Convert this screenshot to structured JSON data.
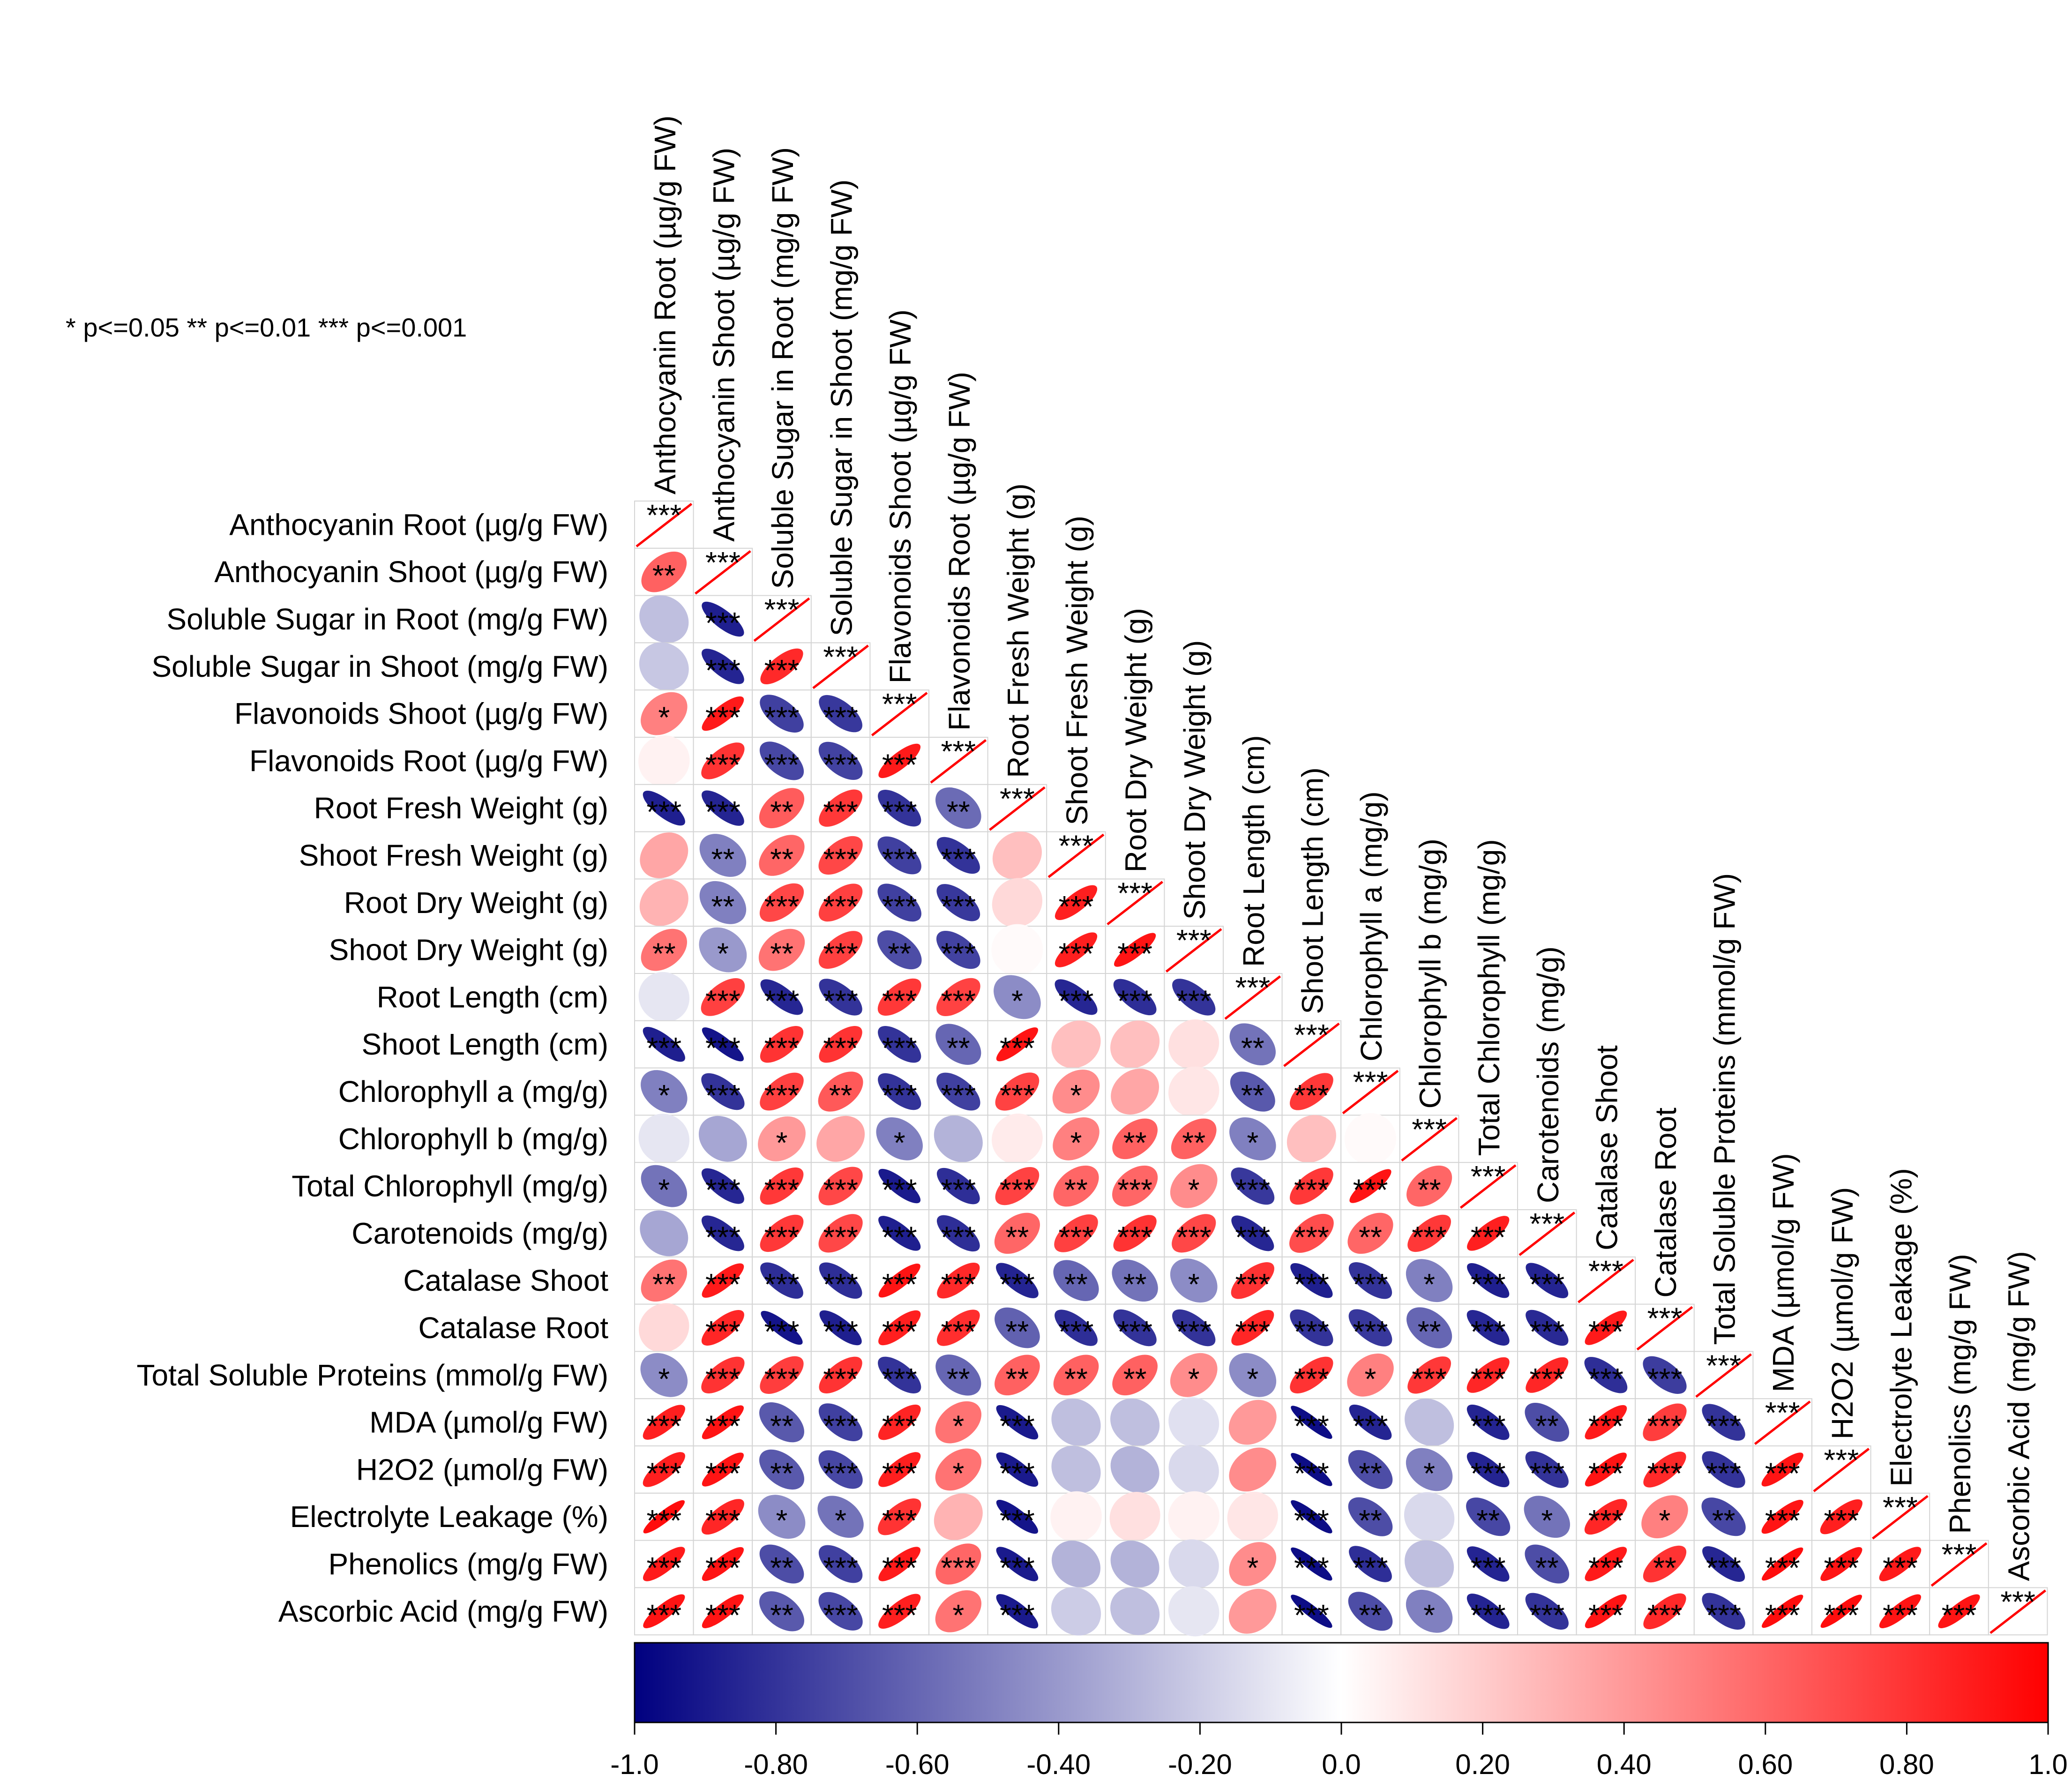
{
  "chart_data": {
    "type": "heatmap",
    "subtype": "correlation-ellipse-lower-triangle",
    "significance_legend": "* p<=0.05  ** p<=0.01  *** p<=0.001",
    "variables": [
      "Anthocyanin Root (µg/g FW)",
      "Anthocyanin Shoot (µg/g FW)",
      "Soluble Sugar in Root (mg/g FW)",
      "Soluble Sugar in Shoot (mg/g FW)",
      "Flavonoids Shoot (µg/g FW)",
      "Flavonoids Root (µg/g FW)",
      "Root Fresh Weight (g)",
      "Shoot Fresh Weight (g)",
      "Root Dry Weight (g)",
      "Shoot Dry Weight (g)",
      "Root Length (cm)",
      "Shoot Length (cm)",
      "Chlorophyll a (mg/g)",
      "Chlorophyll b (mg/g)",
      "Total Chlorophyll  (mg/g)",
      "Carotenoids (mg/g)",
      "Catalase Shoot",
      "Catalase Root",
      "Total Soluble Proteins (mmol/g FW)",
      "MDA (µmol/g FW)",
      "H2O2 (µmol/g FW)",
      "Electrolyte Leakage (%)",
      "Phenolics  (mg/g FW)",
      "Ascorbic Acid (mg/g FW)"
    ],
    "correlations": [
      [
        1.0
      ],
      [
        0.62,
        1.0
      ],
      [
        -0.25,
        -0.88,
        1.0
      ],
      [
        -0.22,
        -0.86,
        0.84,
        1.0
      ],
      [
        0.5,
        0.9,
        -0.75,
        -0.78,
        1.0
      ],
      [
        0.05,
        0.8,
        -0.72,
        -0.74,
        0.9,
        1.0
      ],
      [
        -0.88,
        -0.86,
        0.64,
        0.78,
        -0.8,
        -0.58,
        1.0
      ],
      [
        0.35,
        -0.5,
        0.6,
        0.72,
        -0.75,
        -0.8,
        0.25,
        1.0
      ],
      [
        0.3,
        -0.5,
        0.72,
        0.75,
        -0.75,
        -0.78,
        0.15,
        0.88,
        1.0
      ],
      [
        0.55,
        -0.4,
        0.55,
        0.75,
        -0.7,
        -0.74,
        0.02,
        0.88,
        0.92,
        1.0
      ],
      [
        -0.1,
        0.75,
        -0.85,
        -0.8,
        0.78,
        0.74,
        -0.45,
        -0.85,
        -0.82,
        -0.8,
        1.0
      ],
      [
        -0.88,
        -0.92,
        0.8,
        0.8,
        -0.8,
        -0.6,
        0.92,
        0.25,
        0.25,
        0.12,
        -0.55,
        1.0
      ],
      [
        -0.5,
        -0.8,
        0.75,
        0.65,
        -0.8,
        -0.75,
        0.74,
        0.45,
        0.35,
        0.1,
        -0.65,
        0.78,
        1.0
      ],
      [
        -0.1,
        -0.35,
        0.4,
        0.35,
        -0.5,
        -0.3,
        0.08,
        0.5,
        0.62,
        0.62,
        -0.5,
        0.25,
        0.02,
        1.0
      ],
      [
        -0.55,
        -0.85,
        0.78,
        0.72,
        -0.9,
        -0.82,
        0.74,
        0.6,
        0.6,
        0.45,
        -0.78,
        0.78,
        0.92,
        0.6,
        1.0
      ],
      [
        -0.35,
        -0.85,
        0.78,
        0.72,
        -0.88,
        -0.82,
        0.6,
        0.75,
        0.8,
        0.72,
        -0.85,
        0.7,
        0.6,
        0.78,
        0.88,
        1.0
      ],
      [
        0.55,
        0.9,
        -0.82,
        -0.82,
        0.92,
        0.84,
        -0.86,
        -0.6,
        -0.55,
        -0.45,
        0.8,
        -0.88,
        -0.8,
        -0.5,
        -0.88,
        -0.86,
        1.0
      ],
      [
        0.15,
        0.85,
        -0.92,
        -0.88,
        0.88,
        0.82,
        -0.62,
        -0.82,
        -0.8,
        -0.8,
        0.85,
        -0.8,
        -0.78,
        -0.6,
        -0.85,
        -0.84,
        0.9,
        1.0
      ],
      [
        -0.45,
        0.8,
        0.76,
        0.8,
        -0.8,
        -0.6,
        0.62,
        0.62,
        0.62,
        0.45,
        -0.45,
        0.8,
        0.5,
        0.78,
        0.85,
        0.85,
        -0.82,
        -0.76,
        1.0
      ],
      [
        0.88,
        0.92,
        -0.65,
        -0.75,
        0.86,
        0.55,
        -0.9,
        -0.25,
        -0.25,
        -0.12,
        0.4,
        -0.95,
        -0.86,
        -0.25,
        -0.86,
        -0.7,
        0.9,
        0.76,
        -0.8,
        1.0
      ],
      [
        0.88,
        0.92,
        -0.65,
        -0.72,
        0.88,
        0.55,
        -0.9,
        -0.25,
        -0.3,
        -0.15,
        0.45,
        -0.95,
        -0.7,
        -0.5,
        -0.86,
        -0.8,
        0.92,
        0.84,
        -0.8,
        0.92,
        1.0
      ],
      [
        0.95,
        0.85,
        -0.45,
        -0.55,
        0.8,
        0.3,
        -0.92,
        0.05,
        0.12,
        0.05,
        0.1,
        -0.95,
        -0.7,
        -0.15,
        -0.72,
        -0.55,
        0.85,
        0.5,
        -0.72,
        0.92,
        0.88,
        1.0
      ],
      [
        0.9,
        0.92,
        -0.7,
        -0.75,
        0.9,
        0.6,
        -0.9,
        -0.3,
        -0.3,
        -0.15,
        0.45,
        -0.95,
        -0.82,
        -0.25,
        -0.86,
        -0.7,
        0.9,
        0.8,
        -0.85,
        0.95,
        0.92,
        0.9,
        1.0
      ],
      [
        0.92,
        0.92,
        -0.65,
        -0.72,
        0.88,
        0.55,
        -0.9,
        -0.2,
        -0.25,
        -0.1,
        0.4,
        -0.95,
        -0.7,
        -0.5,
        -0.86,
        -0.8,
        0.92,
        0.84,
        -0.8,
        0.95,
        0.95,
        0.92,
        0.92,
        1.0
      ]
    ],
    "significance": [
      [
        "***"
      ],
      [
        "**",
        "***"
      ],
      [
        "",
        "***",
        "***"
      ],
      [
        "",
        "***",
        "***",
        "***"
      ],
      [
        "*",
        "***",
        "***",
        "***",
        "***"
      ],
      [
        "",
        "***",
        "***",
        "***",
        "***",
        "***"
      ],
      [
        "***",
        "***",
        "**",
        "***",
        "***",
        "**",
        "***"
      ],
      [
        "",
        "**",
        "**",
        "***",
        "***",
        "***",
        "",
        "***"
      ],
      [
        "",
        "**",
        "***",
        "***",
        "***",
        "***",
        "",
        "***",
        "***"
      ],
      [
        "**",
        "*",
        "**",
        "***",
        "**",
        "***",
        "",
        "***",
        "***",
        "***"
      ],
      [
        "",
        "***",
        "***",
        "***",
        "***",
        "***",
        "*",
        "***",
        "***",
        "***",
        "***"
      ],
      [
        "***",
        "***",
        "***",
        "***",
        "***",
        "**",
        "***",
        "",
        "",
        "",
        "**",
        "***"
      ],
      [
        "*",
        "***",
        "***",
        "**",
        "***",
        "***",
        "***",
        "*",
        "",
        "",
        "**",
        "***",
        "***"
      ],
      [
        "",
        "",
        "*",
        "",
        "*",
        "",
        "",
        "*",
        "**",
        "**",
        "*",
        "",
        "",
        "***"
      ],
      [
        "*",
        "***",
        "***",
        "***",
        "***",
        "***",
        "***",
        "**",
        "***",
        "*",
        "***",
        "***",
        "***",
        "**",
        "***"
      ],
      [
        "",
        "***",
        "***",
        "***",
        "***",
        "***",
        "**",
        "***",
        "***",
        "***",
        "***",
        "***",
        "**",
        "***",
        "***",
        "***"
      ],
      [
        "**",
        "***",
        "***",
        "***",
        "***",
        "***",
        "***",
        "**",
        "**",
        "*",
        "***",
        "***",
        "***",
        "*",
        "***",
        "***",
        "***"
      ],
      [
        "",
        "***",
        "***",
        "***",
        "***",
        "***",
        "**",
        "***",
        "***",
        "***",
        "***",
        "***",
        "***",
        "**",
        "***",
        "***",
        "***",
        "***"
      ],
      [
        "*",
        "***",
        "***",
        "***",
        "***",
        "**",
        "**",
        "**",
        "**",
        "*",
        "*",
        "***",
        "*",
        "***",
        "***",
        "***",
        "***",
        "***",
        "***"
      ],
      [
        "***",
        "***",
        "**",
        "***",
        "***",
        "*",
        "***",
        "",
        "",
        "",
        "",
        "***",
        "***",
        "",
        "***",
        "**",
        "***",
        "***",
        "***",
        "***"
      ],
      [
        "***",
        "***",
        "**",
        "***",
        "***",
        "*",
        "***",
        "",
        "",
        "",
        "",
        "***",
        "**",
        "*",
        "***",
        "***",
        "***",
        "***",
        "***",
        "***",
        "***"
      ],
      [
        "***",
        "***",
        "*",
        "*",
        "***",
        "",
        "***",
        "",
        "",
        "",
        "",
        "***",
        "**",
        "",
        "**",
        "*",
        "***",
        "*",
        "**",
        "***",
        "***",
        "***"
      ],
      [
        "***",
        "***",
        "**",
        "***",
        "***",
        "***",
        "***",
        "",
        "",
        "",
        "*",
        "***",
        "***",
        "",
        "***",
        "**",
        "***",
        "**",
        "***",
        "***",
        "***",
        "***",
        "***"
      ],
      [
        "***",
        "***",
        "**",
        "***",
        "***",
        "*",
        "***",
        "",
        "",
        "",
        "",
        "***",
        "**",
        "*",
        "***",
        "***",
        "***",
        "***",
        "***",
        "***",
        "***",
        "***",
        "***",
        "***"
      ]
    ],
    "colorbar": {
      "range": [
        -1.0,
        1.0
      ],
      "colors": [
        "#000080",
        "#ffffff",
        "#ff0000"
      ],
      "tick_labels": [
        "-1.0",
        "-0.80",
        "-0.60",
        "-0.40",
        "-0.20",
        "0.0",
        "0.20",
        "0.40",
        "0.60",
        "0.80",
        "1.0"
      ]
    }
  }
}
